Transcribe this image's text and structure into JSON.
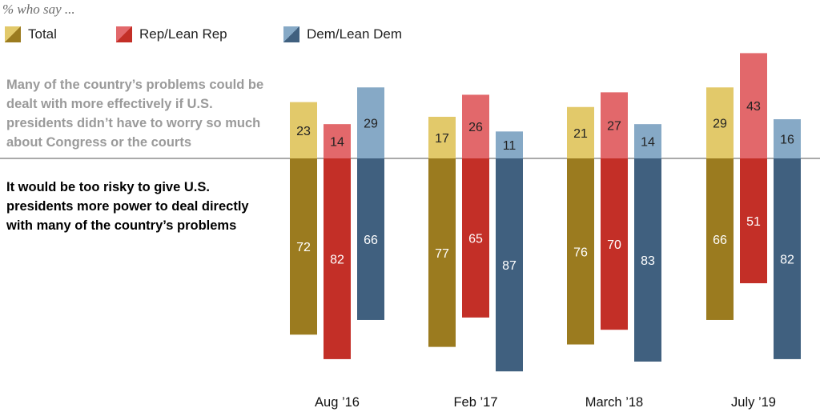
{
  "subtitle": "% who say ...",
  "legend": [
    {
      "label": "Total"
    },
    {
      "label": "Rep/Lean Rep"
    },
    {
      "label": "Dem/Lean Dem"
    }
  ],
  "labels": {
    "top": "Many of the country’s problems could be dealt with more effectively if U.S. presidents didn’t have to worry so much about Congress or the courts",
    "bottom": "It would be too risky to give U.S. presidents more power to deal directly with many of the country’s problems"
  },
  "colors": {
    "total_top": "#e2c96a",
    "total_bottom": "#9b7b1f",
    "rep_top": "#e2686b",
    "rep_bottom": "#c32f27",
    "dem_top": "#86a9c6",
    "dem_bottom": "#40607f"
  },
  "chart_data": {
    "type": "bar",
    "categories": [
      "Aug ’16",
      "Feb ’17",
      "March ’18",
      "July ’19"
    ],
    "series": [
      {
        "name": "Total",
        "top": [
          23,
          17,
          21,
          29
        ],
        "bottom": [
          72,
          77,
          76,
          66
        ]
      },
      {
        "name": "Rep/Lean Rep",
        "top": [
          14,
          26,
          27,
          43
        ],
        "bottom": [
          82,
          65,
          70,
          51
        ]
      },
      {
        "name": "Dem/Lean Dem",
        "top": [
          29,
          11,
          14,
          16
        ],
        "bottom": [
          66,
          87,
          83,
          82
        ]
      }
    ]
  }
}
